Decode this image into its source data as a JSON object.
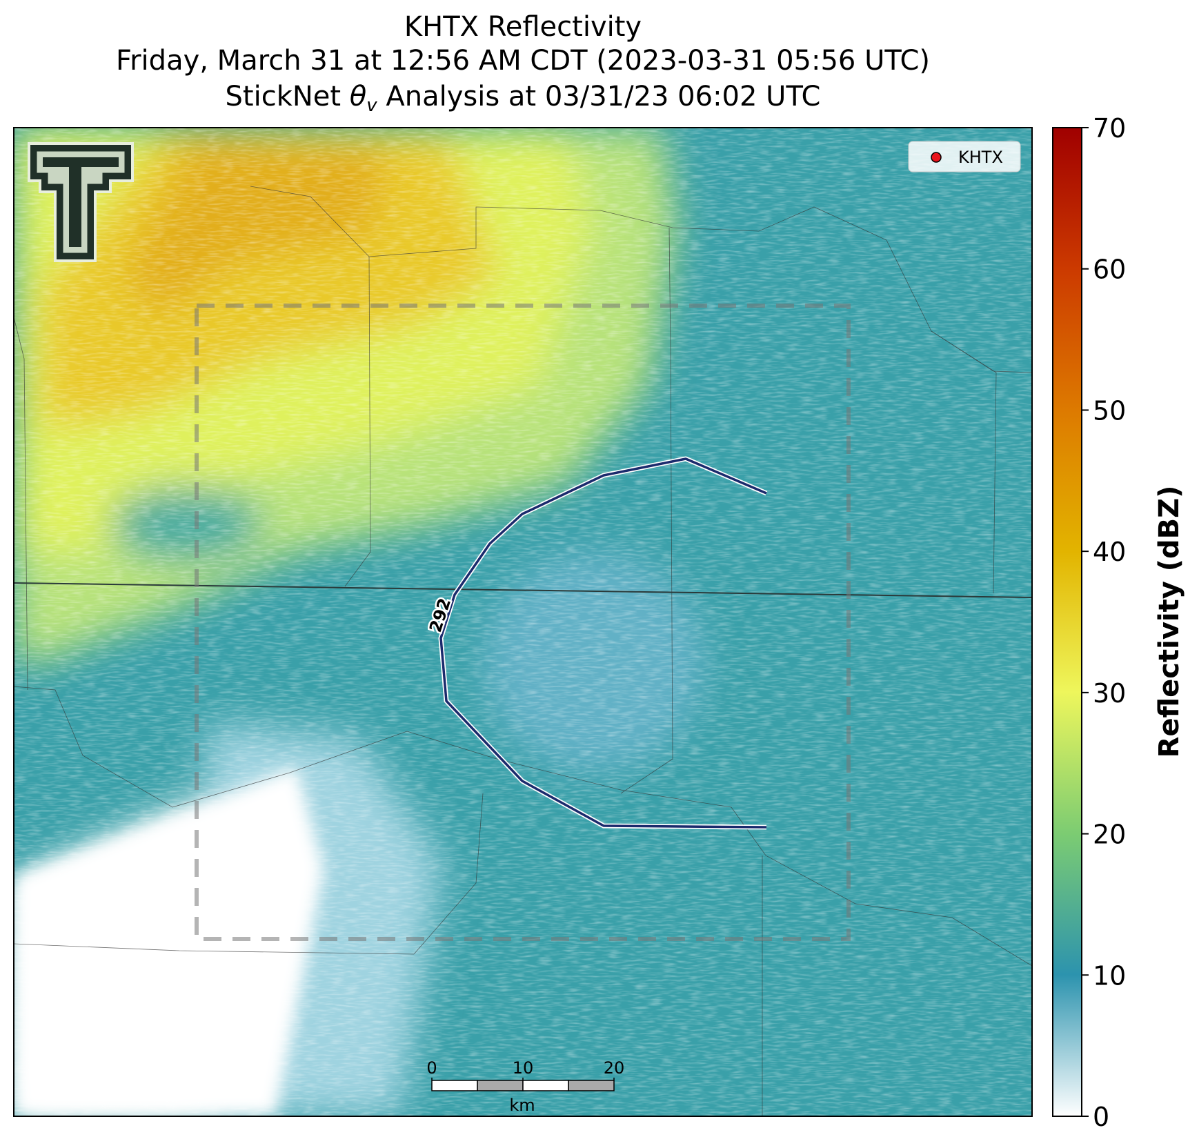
{
  "title": {
    "line1": "KHTX Reflectivity",
    "line2": "Friday, March 31 at 12:56 AM CDT (2023-03-31 05:56 UTC)",
    "line3": {
      "prefix": "StickNet",
      "symbol": "θ",
      "subscript": "v",
      "suffix": "Analysis at 03/31/23 06:02 UTC"
    }
  },
  "legend": {
    "label": "KHTX",
    "color": "#e8141c"
  },
  "contour": {
    "label": "292",
    "color": "#1a2a6c"
  },
  "colorbar": {
    "label": "Reflectivity (dBZ)",
    "lim": [
      0,
      70
    ],
    "ticks": [
      0,
      10,
      20,
      30,
      40,
      50,
      60,
      70
    ]
  },
  "scalebar": {
    "ticks": [
      0,
      10,
      20
    ],
    "unit": "km"
  }
}
